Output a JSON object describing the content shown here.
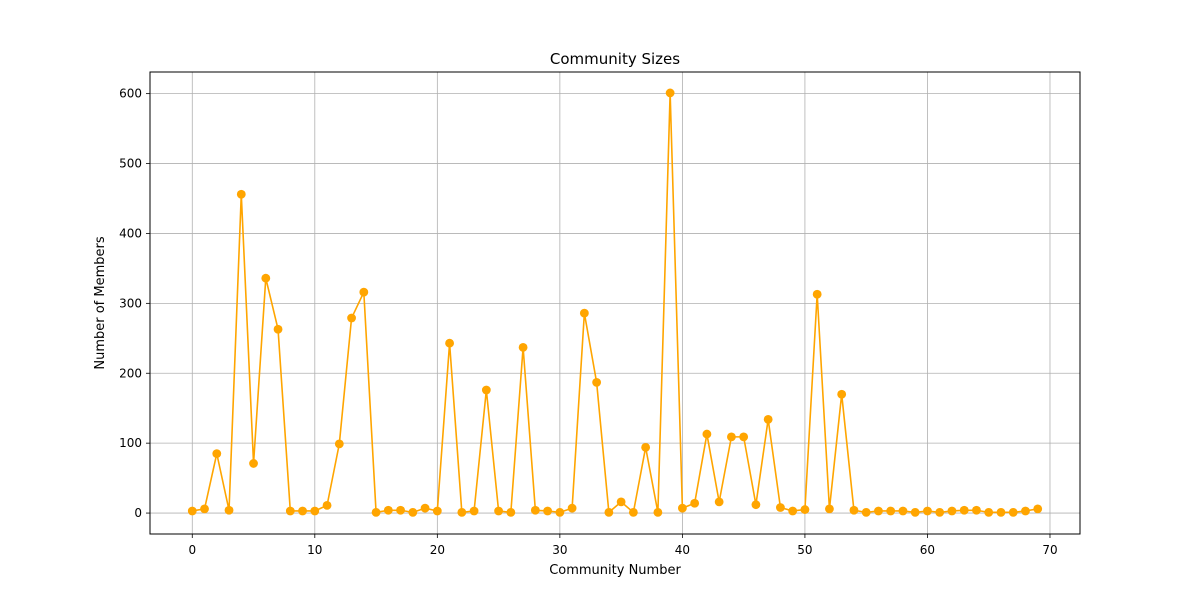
{
  "chart_data": {
    "type": "line",
    "title": "Community Sizes",
    "xlabel": "Community Number",
    "ylabel": "Number of Members",
    "xlim": [
      -3.45,
      72.45
    ],
    "ylim": [
      -29.95,
      630.95
    ],
    "xticks": [
      0,
      10,
      20,
      30,
      40,
      50,
      60,
      70
    ],
    "yticks": [
      0,
      100,
      200,
      300,
      400,
      500,
      600
    ],
    "grid": true,
    "legend": "none",
    "series": [
      {
        "color": "#ffa500",
        "marker": "circle",
        "x": [
          0,
          1,
          2,
          3,
          4,
          5,
          6,
          7,
          8,
          9,
          10,
          11,
          12,
          13,
          14,
          15,
          16,
          17,
          18,
          19,
          20,
          21,
          22,
          23,
          24,
          25,
          26,
          27,
          28,
          29,
          30,
          31,
          32,
          33,
          34,
          35,
          36,
          37,
          38,
          39,
          40,
          41,
          42,
          43,
          44,
          45,
          46,
          47,
          48,
          49,
          50,
          51,
          52,
          53,
          54,
          55,
          56,
          57,
          58,
          59,
          60,
          61,
          62,
          63,
          64,
          65,
          66,
          67,
          68,
          69
        ],
        "values": [
          3,
          6,
          85,
          4,
          456,
          71,
          336,
          263,
          3,
          3,
          3,
          11,
          99,
          279,
          316,
          1,
          4,
          4,
          1,
          7,
          3,
          243,
          1,
          3,
          176,
          3,
          1,
          237,
          4,
          3,
          1,
          7,
          286,
          187,
          1,
          16,
          1,
          94,
          1,
          601,
          7,
          14,
          113,
          16,
          109,
          109,
          12,
          134,
          8,
          3,
          5,
          313,
          6,
          170,
          4,
          1,
          3,
          3,
          3,
          1,
          3,
          1,
          3,
          4,
          4,
          1,
          1,
          1,
          3,
          6
        ]
      }
    ]
  }
}
